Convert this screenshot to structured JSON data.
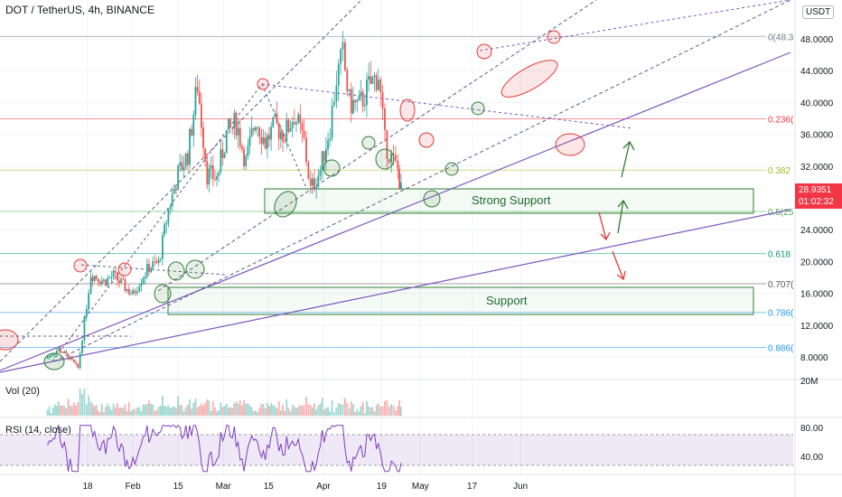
{
  "header": {
    "title": "DOT / TetherUS, 4h, BINANCE",
    "currency": "USDT"
  },
  "price_tag": {
    "price": "28.9351",
    "countdown": "01:02:32"
  },
  "panes": {
    "volume_label": "Vol (20)",
    "rsi_label": "RSI (14, close)"
  },
  "annotations": {
    "strong_support": "Strong Support",
    "support": "Support"
  },
  "fib_levels": [
    {
      "label": "0(48.3",
      "price": 48.3,
      "color": "#787b86"
    },
    {
      "label": "0.236(",
      "price": 37.95,
      "color": "#f23645"
    },
    {
      "label": "0.382",
      "price": 31.5,
      "color": "#a5b924"
    },
    {
      "label": "0.5(25",
      "price": 26.3,
      "color": "#4caf50"
    },
    {
      "label": "0.618",
      "price": 21.0,
      "color": "#089981"
    },
    {
      "label": "0.707(",
      "price": 17.2,
      "color": "#555555"
    },
    {
      "label": "0.786(",
      "price": 13.6,
      "color": "#2196f3"
    },
    {
      "label": "0.886(",
      "price": 9.2,
      "color": "#2196f3"
    }
  ],
  "colors": {
    "up": "#26a69a",
    "down": "#ef5350",
    "trend": "#7e57c2",
    "rsi": "#7e3fb8",
    "green_box": "#2e7d32",
    "red_mark": "#e53935",
    "green_mark": "#2e7d32"
  },
  "chart_data": {
    "type": "candlestick",
    "x_ticks": [
      "18",
      "Feb",
      "15",
      "Mar",
      "15",
      "Apr",
      "19",
      "May",
      "17",
      "Jun"
    ],
    "y_ticks": [
      "48.0000",
      "44.0000",
      "40.0000",
      "36.0000",
      "32.0000",
      "24.0000",
      "20.0000",
      "16.0000",
      "12.0000",
      "8.0000"
    ],
    "y_range": [
      4,
      50
    ],
    "volume_axis_tick": "20M",
    "rsi_ticks": [
      "80.00",
      "40.00"
    ],
    "rsi_band": [
      30,
      70
    ],
    "price_path": [
      {
        "date": "Jan 4",
        "price": 7.8
      },
      {
        "date": "Jan 8",
        "price": 9.0
      },
      {
        "date": "Jan 11",
        "price": 8.0
      },
      {
        "date": "Jan 14",
        "price": 6.6
      },
      {
        "date": "Jan 16",
        "price": 12.5
      },
      {
        "date": "Jan 18",
        "price": 18.5
      },
      {
        "date": "Jan 22",
        "price": 17.5
      },
      {
        "date": "Jan 25",
        "price": 18.2
      },
      {
        "date": "Jan 28",
        "price": 17.0
      },
      {
        "date": "Jan 31",
        "price": 15.8
      },
      {
        "date": "Feb 2",
        "price": 17.5
      },
      {
        "date": "Feb 5",
        "price": 19.3
      },
      {
        "date": "Feb 8",
        "price": 19.8
      },
      {
        "date": "Feb 11",
        "price": 26.5
      },
      {
        "date": "Feb 14",
        "price": 31.0
      },
      {
        "date": "Feb 17",
        "price": 33.5
      },
      {
        "date": "Feb 20",
        "price": 42.3
      },
      {
        "date": "Feb 23",
        "price": 31.0
      },
      {
        "date": "Feb 26",
        "price": 30.5
      },
      {
        "date": "Mar 1",
        "price": 36.0
      },
      {
        "date": "Mar 4",
        "price": 37.5
      },
      {
        "date": "Mar 7",
        "price": 32.5
      },
      {
        "date": "Mar 10",
        "price": 38.0
      },
      {
        "date": "Mar 13",
        "price": 35.0
      },
      {
        "date": "Mar 16",
        "price": 37.0
      },
      {
        "date": "Mar 19",
        "price": 36.0
      },
      {
        "date": "Mar 22",
        "price": 38.5
      },
      {
        "date": "Mar 25",
        "price": 35.0
      },
      {
        "date": "Mar 27",
        "price": 29.0
      },
      {
        "date": "Mar 30",
        "price": 31.5
      },
      {
        "date": "Apr 2",
        "price": 37.0
      },
      {
        "date": "Apr 4",
        "price": 43.0
      },
      {
        "date": "Apr 6",
        "price": 46.0
      },
      {
        "date": "Apr 8",
        "price": 40.0
      },
      {
        "date": "Apr 11",
        "price": 39.5
      },
      {
        "date": "Apr 14",
        "price": 42.0
      },
      {
        "date": "Apr 17",
        "price": 43.5
      },
      {
        "date": "Apr 19",
        "price": 35.0
      },
      {
        "date": "Apr 21",
        "price": 33.0
      },
      {
        "date": "Apr 23",
        "price": 31.5
      },
      {
        "date": "Apr 24",
        "price": 28.9
      }
    ]
  }
}
